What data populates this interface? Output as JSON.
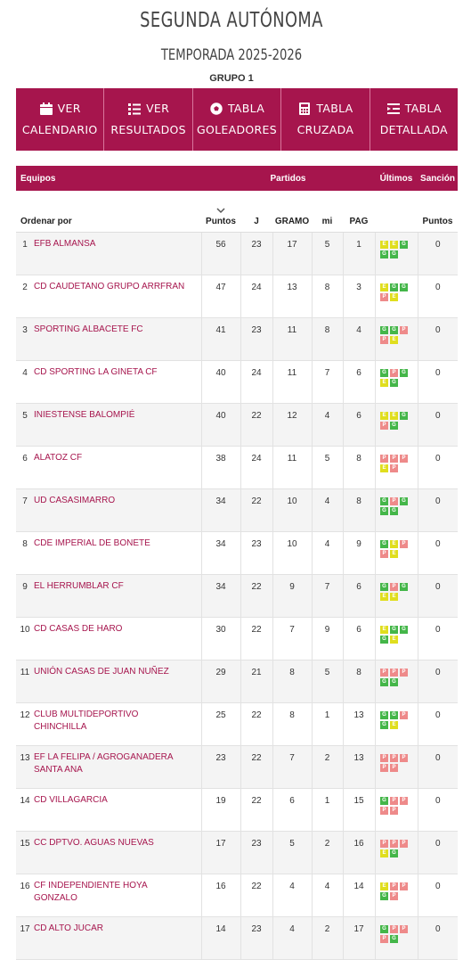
{
  "header": {
    "title": "SEGUNDA AUTÓNOMA",
    "season": "TEMPORADA 2025-2026",
    "group": "GRUPO 1"
  },
  "menu": [
    {
      "l1": "VER",
      "l2": "CALENDARIO",
      "icon": "calendar-icon"
    },
    {
      "l1": "VER",
      "l2": "RESULTADOS",
      "icon": "list-icon"
    },
    {
      "l1": "TABLA",
      "l2": "GOLEADORES",
      "icon": "ball-icon"
    },
    {
      "l1": "TABLA",
      "l2": "CRUZADA",
      "icon": "calculator-icon"
    },
    {
      "l1": "TABLA",
      "l2": "DETALLADA",
      "icon": "detail-list-icon"
    }
  ],
  "table": {
    "group_headers": {
      "equipos": "Equipos",
      "partidos": "Partidos",
      "ultimos": "Últimos",
      "sancion": "Sanción"
    },
    "col_headers": {
      "order": "Ordenar por",
      "puntos": "Puntos",
      "j": "J",
      "g": "GRAMO",
      "e": "mi",
      "p": "PAG",
      "s_puntos": "Puntos"
    },
    "colors": {
      "win": "#44b649",
      "draw": "#e0de1e",
      "loss": "#ee8a8a",
      "accent": "#a6154d"
    },
    "rows": [
      {
        "pos": "1",
        "team": "EFB ALMANSA",
        "pts": "56",
        "j": "23",
        "g": "17",
        "e": "5",
        "p": "1",
        "form": [
          "E",
          "E",
          "G",
          "G",
          "G"
        ],
        "san": "0"
      },
      {
        "pos": "2",
        "team": "CD CAUDETANO GRUPO ARRFRAN",
        "pts": "47",
        "j": "24",
        "g": "13",
        "e": "8",
        "p": "3",
        "form": [
          "E",
          "G",
          "G",
          "P",
          "E"
        ],
        "san": "0"
      },
      {
        "pos": "3",
        "team": "SPORTING ALBACETE FC",
        "pts": "41",
        "j": "23",
        "g": "11",
        "e": "8",
        "p": "4",
        "form": [
          "G",
          "G",
          "P",
          "P",
          "E"
        ],
        "san": "0"
      },
      {
        "pos": "4",
        "team": "CD SPORTING LA GINETA CF",
        "pts": "40",
        "j": "24",
        "g": "11",
        "e": "7",
        "p": "6",
        "form": [
          "G",
          "P",
          "G",
          "E",
          "G"
        ],
        "san": "0"
      },
      {
        "pos": "5",
        "team": "INIESTENSE BALOMPIÉ",
        "pts": "40",
        "j": "22",
        "g": "12",
        "e": "4",
        "p": "6",
        "form": [
          "E",
          "E",
          "G",
          "P",
          "G"
        ],
        "san": "0"
      },
      {
        "pos": "6",
        "team": "ALATOZ CF",
        "pts": "38",
        "j": "24",
        "g": "11",
        "e": "5",
        "p": "8",
        "form": [
          "P",
          "P",
          "P",
          "E",
          "P"
        ],
        "san": "0"
      },
      {
        "pos": "7",
        "team": "UD CASASIMARRO",
        "pts": "34",
        "j": "22",
        "g": "10",
        "e": "4",
        "p": "8",
        "form": [
          "G",
          "P",
          "G",
          "G",
          "G"
        ],
        "san": "0"
      },
      {
        "pos": "8",
        "team": "CDE IMPERIAL DE BONETE",
        "pts": "34",
        "j": "23",
        "g": "10",
        "e": "4",
        "p": "9",
        "form": [
          "G",
          "E",
          "P",
          "P",
          "E"
        ],
        "san": "0"
      },
      {
        "pos": "9",
        "team": "EL HERRUMBLAR CF",
        "pts": "34",
        "j": "22",
        "g": "9",
        "e": "7",
        "p": "6",
        "form": [
          "G",
          "P",
          "G",
          "E",
          "E"
        ],
        "san": "0"
      },
      {
        "pos": "10",
        "team": "CD CASAS DE HARO",
        "pts": "30",
        "j": "22",
        "g": "7",
        "e": "9",
        "p": "6",
        "form": [
          "E",
          "G",
          "G",
          "G",
          "E"
        ],
        "san": "0"
      },
      {
        "pos": "11",
        "team": "UNIÓN CASAS DE JUAN NUÑEZ",
        "pts": "29",
        "j": "21",
        "g": "8",
        "e": "5",
        "p": "8",
        "form": [
          "P",
          "P",
          "P",
          "G",
          "G"
        ],
        "san": "0"
      },
      {
        "pos": "12",
        "team": "CLUB MULTIDEPORTIVO CHINCHILLA",
        "pts": "25",
        "j": "22",
        "g": "8",
        "e": "1",
        "p": "13",
        "form": [
          "G",
          "G",
          "P",
          "G",
          "E"
        ],
        "san": "0"
      },
      {
        "pos": "13",
        "team": "EF LA FELIPA / AGROGANADERA SANTA ANA",
        "pts": "23",
        "j": "22",
        "g": "7",
        "e": "2",
        "p": "13",
        "form": [
          "P",
          "P",
          "P",
          "P",
          "P"
        ],
        "san": "0"
      },
      {
        "pos": "14",
        "team": "CD VILLAGARCIA",
        "pts": "19",
        "j": "22",
        "g": "6",
        "e": "1",
        "p": "15",
        "form": [
          "G",
          "P",
          "P",
          "P",
          "P"
        ],
        "san": "0"
      },
      {
        "pos": "15",
        "team": "CC DPTVO. AGUAS NUEVAS",
        "pts": "17",
        "j": "23",
        "g": "5",
        "e": "2",
        "p": "16",
        "form": [
          "P",
          "P",
          "P",
          "E",
          "G"
        ],
        "san": "0"
      },
      {
        "pos": "16",
        "team": "CF INDEPENDIENTE HOYA GONZALO",
        "pts": "16",
        "j": "22",
        "g": "4",
        "e": "4",
        "p": "14",
        "form": [
          "E",
          "P",
          "P",
          "G",
          "P"
        ],
        "san": "0"
      },
      {
        "pos": "17",
        "team": "CD ALTO JUCAR",
        "pts": "14",
        "j": "23",
        "g": "4",
        "e": "2",
        "p": "17",
        "form": [
          "G",
          "P",
          "P",
          "P",
          "G"
        ],
        "san": "0"
      }
    ]
  }
}
